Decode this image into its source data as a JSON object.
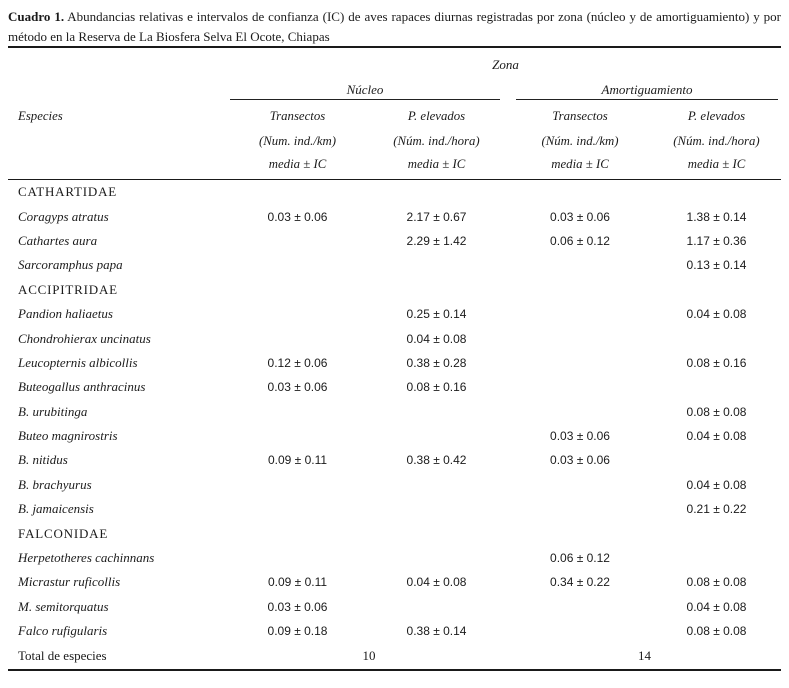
{
  "title": {
    "label": "Cuadro 1.",
    "text": "Abundancias relativas e intervalos de confianza (IC) de aves rapaces diurnas registradas por zona (núcleo y de amortiguamiento) y por método en la Reserva de La Biosfera Selva El Ocote, Chiapas"
  },
  "table": {
    "zone_header": "Zona",
    "zones": [
      {
        "label": "Núcleo"
      },
      {
        "label": "Amortiguamiento"
      }
    ],
    "species_header": "Especies",
    "columns": [
      {
        "method": "Transectos",
        "units": "(Num. ind./km)",
        "stat": "media ± IC"
      },
      {
        "method": "P. elevados",
        "units": "(Núm. ind./hora)",
        "stat": "media ± IC"
      },
      {
        "method": "Transectos",
        "units": "(Núm. ind./km)",
        "stat": "media ± IC"
      },
      {
        "method": "P. elevados",
        "units": "(Núm. ind./hora)",
        "stat": "media ± IC"
      }
    ],
    "rows": [
      {
        "type": "family",
        "name": "CATHARTIDAE",
        "values": [
          "",
          "",
          "",
          ""
        ]
      },
      {
        "type": "species",
        "name": "Coragyps atratus",
        "values": [
          "0.03 ± 0.06",
          "2.17 ± 0.67",
          "0.03 ± 0.06",
          "1.38 ± 0.14"
        ]
      },
      {
        "type": "species",
        "name": "Cathartes aura",
        "values": [
          "",
          "2.29 ± 1.42",
          "0.06 ± 0.12",
          "1.17 ± 0.36"
        ]
      },
      {
        "type": "species",
        "name": "Sarcoramphus papa",
        "values": [
          "",
          "",
          "",
          "0.13 ± 0.14"
        ]
      },
      {
        "type": "family",
        "name": "ACCIPITRIDAE",
        "values": [
          "",
          "",
          "",
          ""
        ]
      },
      {
        "type": "species",
        "name": "Pandion haliaetus",
        "values": [
          "",
          "0.25 ± 0.14",
          "",
          "0.04 ± 0.08"
        ]
      },
      {
        "type": "species",
        "name": "Chondrohierax uncinatus",
        "values": [
          "",
          "0.04 ± 0.08",
          "",
          ""
        ]
      },
      {
        "type": "species",
        "name": "Leucopternis albicollis",
        "values": [
          "0.12 ± 0.06",
          "0.38 ± 0.28",
          "",
          "0.08 ± 0.16"
        ]
      },
      {
        "type": "species",
        "name": "Buteogallus anthracinus",
        "values": [
          "0.03 ± 0.06",
          "0.08 ± 0.16",
          "",
          ""
        ]
      },
      {
        "type": "species",
        "name": "B. urubitinga",
        "values": [
          "",
          "",
          "",
          "0.08 ± 0.08"
        ]
      },
      {
        "type": "species",
        "name": "Buteo magnirostris",
        "values": [
          "",
          "",
          "0.03 ± 0.06",
          "0.04 ± 0.08"
        ]
      },
      {
        "type": "species",
        "name": "B. nitidus",
        "values": [
          "0.09 ± 0.11",
          "0.38 ± 0.42",
          "0.03 ± 0.06",
          ""
        ]
      },
      {
        "type": "species",
        "name": "B. brachyurus",
        "values": [
          "",
          "",
          "",
          "0.04 ± 0.08"
        ]
      },
      {
        "type": "species",
        "name": "B. jamaicensis",
        "values": [
          "",
          "",
          "",
          "0.21 ± 0.22"
        ]
      },
      {
        "type": "family",
        "name": "FALCONIDAE",
        "values": [
          "",
          "",
          "",
          ""
        ]
      },
      {
        "type": "species",
        "name": "Herpetotheres cachinnans",
        "values": [
          "",
          "",
          "0.06 ± 0.12",
          ""
        ]
      },
      {
        "type": "species",
        "name": "Micrastur ruficollis",
        "values": [
          "0.09 ± 0.11",
          "0.04 ± 0.08",
          "0.34 ± 0.22",
          "0.08 ± 0.08"
        ]
      },
      {
        "type": "species",
        "name": "M. semitorquatus",
        "values": [
          "0.03 ± 0.06",
          "",
          "",
          "0.04 ± 0.08"
        ]
      },
      {
        "type": "species",
        "name": "Falco rufigularis",
        "values": [
          "0.09 ± 0.18",
          "0.38 ± 0.14",
          "",
          "0.08 ± 0.08"
        ]
      }
    ],
    "total": {
      "label": "Total de especies",
      "nucleo": "10",
      "amortiguamiento": "14"
    }
  }
}
